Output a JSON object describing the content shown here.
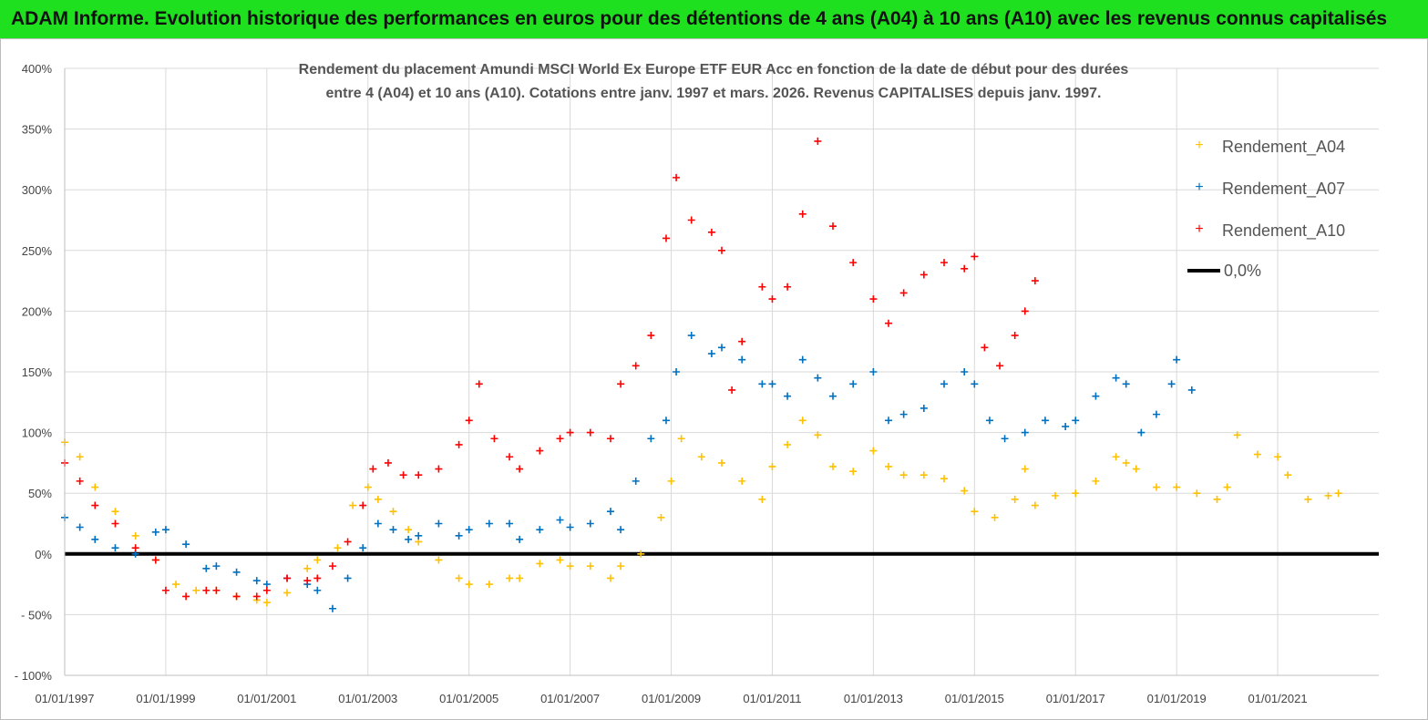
{
  "banner": {
    "title": "ADAM Informe. Evolution historique des performances en euros pour des détentions de 4 ans (A04) à 10 ans (A10) avec les revenus connus capitalisés"
  },
  "colors": {
    "banner_bg": "#1fe01f",
    "a04": "#ffc000",
    "a07": "#0070c0",
    "a10": "#ff0000",
    "zero": "#000000",
    "grid": "#d9d9d9"
  },
  "chart_data": {
    "type": "scatter",
    "title_lines": [
      "Rendement du placement Amundi MSCI World Ex Europe ETF EUR Acc en fonction de la date de début pour des durées",
      "entre 4 (A04) et 10 ans (A10). Cotations entre janv. 1997 et mars. 2026. Revenus CAPITALISES depuis janv. 1997."
    ],
    "x_axis": {
      "min": 1997.0,
      "max": 2023.0,
      "tick_values": [
        1997,
        1999,
        2001,
        2003,
        2005,
        2007,
        2009,
        2011,
        2013,
        2015,
        2017,
        2019,
        2021
      ],
      "tick_labels": [
        "01/01/1997",
        "01/01/1999",
        "01/01/2001",
        "01/01/2003",
        "01/01/2005",
        "01/01/2007",
        "01/01/2009",
        "01/01/2011",
        "01/01/2013",
        "01/01/2015",
        "01/01/2017",
        "01/01/2019",
        "01/01/2021"
      ]
    },
    "y_axis": {
      "min": -100,
      "max": 400,
      "step": 50,
      "tick_labels": [
        "- 100%",
        "- 50%",
        "0%",
        "50%",
        "100%",
        "150%",
        "200%",
        "250%",
        "300%",
        "350%",
        "400%"
      ]
    },
    "grid": true,
    "legend_position": "top-right",
    "legend": [
      "Rendement_A04",
      "Rendement_A07",
      "Rendement_A10",
      "0,0%"
    ],
    "series": [
      {
        "name": "Rendement_A04",
        "x": [
          1997.0,
          1997.3,
          1997.6,
          1998.0,
          1998.4,
          1998.8,
          1999.2,
          1999.6,
          2000.0,
          2000.4,
          2000.8,
          2001.0,
          2001.4,
          2001.8,
          2002.0,
          2002.4,
          2002.7,
          2003.0,
          2003.2,
          2003.5,
          2003.8,
          2004.0,
          2004.4,
          2004.8,
          2005.0,
          2005.4,
          2005.8,
          2006.0,
          2006.4,
          2006.8,
          2007.0,
          2007.4,
          2007.8,
          2008.0,
          2008.4,
          2008.8,
          2009.0,
          2009.2,
          2009.6,
          2010.0,
          2010.4,
          2010.8,
          2011.0,
          2011.3,
          2011.6,
          2011.9,
          2012.2,
          2012.6,
          2013.0,
          2013.3,
          2013.6,
          2014.0,
          2014.4,
          2014.8,
          2015.0,
          2015.4,
          2015.8,
          2016.0,
          2016.2,
          2016.6,
          2017.0,
          2017.4,
          2017.8,
          2018.0,
          2018.2,
          2018.6,
          2019.0,
          2019.4,
          2019.8,
          2020.0,
          2020.2,
          2020.6,
          2021.0,
          2021.2,
          2021.6,
          2022.0,
          2022.2
        ],
        "y": [
          92,
          80,
          55,
          35,
          15,
          -5,
          -25,
          -30,
          -30,
          -35,
          -38,
          -40,
          -32,
          -12,
          -5,
          5,
          40,
          55,
          45,
          35,
          20,
          10,
          -5,
          -20,
          -25,
          -25,
          -20,
          -20,
          -8,
          -5,
          -10,
          -10,
          -20,
          -10,
          0,
          30,
          60,
          95,
          80,
          75,
          60,
          45,
          72,
          90,
          110,
          98,
          72,
          68,
          85,
          72,
          65,
          65,
          62,
          52,
          35,
          30,
          45,
          70,
          40,
          48,
          50,
          60,
          80,
          75,
          70,
          55,
          55,
          50,
          45,
          55,
          98,
          82,
          80,
          65,
          45,
          48,
          50
        ]
      },
      {
        "name": "Rendement_A07",
        "x": [
          1997.0,
          1997.3,
          1997.6,
          1998.0,
          1998.4,
          1998.8,
          1999.0,
          1999.4,
          1999.8,
          2000.0,
          2000.4,
          2000.8,
          2001.0,
          2001.4,
          2001.8,
          2002.0,
          2002.3,
          2002.6,
          2002.9,
          2003.2,
          2003.5,
          2003.8,
          2004.0,
          2004.4,
          2004.8,
          2005.0,
          2005.4,
          2005.8,
          2006.0,
          2006.4,
          2006.8,
          2007.0,
          2007.4,
          2007.8,
          2008.0,
          2008.3,
          2008.6,
          2008.9,
          2009.1,
          2009.4,
          2009.8,
          2010.0,
          2010.4,
          2010.8,
          2011.0,
          2011.3,
          2011.6,
          2011.9,
          2012.2,
          2012.6,
          2013.0,
          2013.3,
          2013.6,
          2014.0,
          2014.4,
          2014.8,
          2015.0,
          2015.3,
          2015.6,
          2016.0,
          2016.4,
          2016.8,
          2017.0,
          2017.4,
          2017.8,
          2018.0,
          2018.3,
          2018.6,
          2018.9,
          2019.0,
          2019.3
        ],
        "y": [
          30,
          22,
          12,
          5,
          0,
          18,
          20,
          8,
          -12,
          -10,
          -15,
          -22,
          -25,
          -20,
          -25,
          -30,
          -45,
          -20,
          5,
          25,
          20,
          12,
          15,
          25,
          15,
          20,
          25,
          25,
          12,
          20,
          28,
          22,
          25,
          35,
          20,
          60,
          95,
          110,
          150,
          180,
          165,
          170,
          160,
          140,
          140,
          130,
          160,
          145,
          130,
          140,
          150,
          110,
          115,
          120,
          140,
          150,
          140,
          110,
          95,
          100,
          110,
          105,
          110,
          130,
          145,
          140,
          100,
          115,
          140,
          160,
          135
        ]
      },
      {
        "name": "Rendement_A10",
        "x": [
          1997.0,
          1997.3,
          1997.6,
          1998.0,
          1998.4,
          1998.8,
          1999.0,
          1999.4,
          1999.8,
          2000.0,
          2000.4,
          2000.8,
          2001.0,
          2001.4,
          2001.8,
          2002.0,
          2002.3,
          2002.6,
          2002.9,
          2003.1,
          2003.4,
          2003.7,
          2004.0,
          2004.4,
          2004.8,
          2005.0,
          2005.2,
          2005.5,
          2005.8,
          2006.0,
          2006.4,
          2006.8,
          2007.0,
          2007.4,
          2007.8,
          2008.0,
          2008.3,
          2008.6,
          2008.9,
          2009.1,
          2009.4,
          2009.8,
          2010.0,
          2010.2,
          2010.4,
          2010.8,
          2011.0,
          2011.3,
          2011.6,
          2011.9,
          2012.2,
          2012.6,
          2013.0,
          2013.3,
          2013.6,
          2014.0,
          2014.4,
          2014.8,
          2015.0,
          2015.2,
          2015.5,
          2015.8,
          2016.0,
          2016.2
        ],
        "y": [
          75,
          60,
          40,
          25,
          5,
          -5,
          -30,
          -35,
          -30,
          -30,
          -35,
          -35,
          -30,
          -20,
          -22,
          -20,
          -10,
          10,
          40,
          70,
          75,
          65,
          65,
          70,
          90,
          110,
          140,
          95,
          80,
          70,
          85,
          95,
          100,
          100,
          95,
          140,
          155,
          180,
          260,
          310,
          275,
          265,
          250,
          135,
          175,
          220,
          210,
          220,
          280,
          340,
          270,
          240,
          210,
          190,
          215,
          230,
          240,
          235,
          245,
          170,
          155,
          180,
          200,
          225
        ]
      },
      {
        "name": "0,0%",
        "x": [
          1997.0,
          2023.0
        ],
        "y": [
          0,
          0
        ]
      }
    ]
  }
}
